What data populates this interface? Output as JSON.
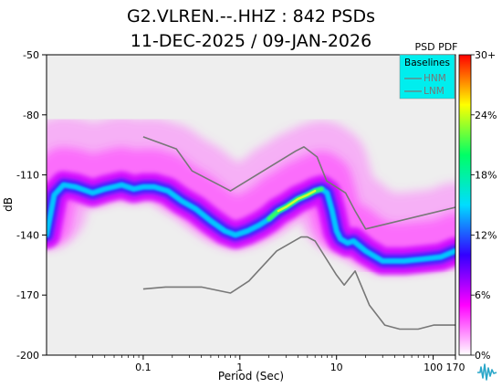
{
  "chart_data": {
    "type": "heatmap",
    "title": "G2.VLREN.--.HHZ : 842 PSDs",
    "subtitle": "11-DEC-2025 / 09-JAN-2026",
    "xlabel": "Period (Sec)",
    "ylabel": "dB",
    "x_scale": "log",
    "xlim": [
      0.01,
      170
    ],
    "ylim": [
      -200,
      -50
    ],
    "x_ticks": [
      {
        "value": 0.1,
        "label": "0.1"
      },
      {
        "value": 1,
        "label": "1"
      },
      {
        "value": 10,
        "label": "10"
      },
      {
        "value": 100,
        "label": "100"
      },
      {
        "value": 170,
        "label": "170"
      }
    ],
    "y_ticks": [
      {
        "value": -50,
        "label": "-50"
      },
      {
        "value": -80,
        "label": "-80"
      },
      {
        "value": -110,
        "label": "-110"
      },
      {
        "value": -140,
        "label": "-140"
      },
      {
        "value": -170,
        "label": "-170"
      },
      {
        "value": -200,
        "label": "-200"
      }
    ],
    "colorbar": {
      "title": "PSD PDF",
      "ticks": [
        "30+",
        "24%",
        "18%",
        "12%",
        "6%",
        "0%"
      ],
      "tick_values": [
        30,
        24,
        18,
        12,
        6,
        0
      ],
      "colors": [
        "#ffffff",
        "#ff00ff",
        "#3300ff",
        "#00ddff",
        "#00ff66",
        "#ffff00",
        "#ff0000"
      ]
    },
    "legend": {
      "title": "Baselines",
      "placement": "top-right",
      "entries": [
        {
          "name": "HNM",
          "color": "#777777"
        },
        {
          "name": "LNM",
          "color": "#777777"
        }
      ]
    },
    "series": [
      {
        "name": "HNM",
        "points": [
          [
            0.1,
            -91
          ],
          [
            0.22,
            -97
          ],
          [
            0.32,
            -108
          ],
          [
            0.8,
            -118
          ],
          [
            3.8,
            -98
          ],
          [
            4.6,
            -96
          ],
          [
            6.3,
            -101
          ],
          [
            7.9,
            -113
          ],
          [
            12.4,
            -119
          ],
          [
            15.6,
            -128
          ],
          [
            20,
            -137
          ],
          [
            176,
            -126
          ]
        ]
      },
      {
        "name": "LNM",
        "points": [
          [
            0.1,
            -167
          ],
          [
            0.17,
            -166
          ],
          [
            0.4,
            -166
          ],
          [
            0.8,
            -169
          ],
          [
            1.24,
            -163
          ],
          [
            2.4,
            -148
          ],
          [
            4.3,
            -141
          ],
          [
            5,
            -141
          ],
          [
            6,
            -143
          ],
          [
            10,
            -160
          ],
          [
            12,
            -165
          ],
          [
            15.6,
            -158
          ],
          [
            21.9,
            -175
          ],
          [
            31.6,
            -185
          ],
          [
            45,
            -187
          ],
          [
            70,
            -187
          ],
          [
            101,
            -185
          ],
          [
            176,
            -185
          ]
        ]
      },
      {
        "name": "mode",
        "points": [
          [
            0.01,
            -140
          ],
          [
            0.012,
            -120
          ],
          [
            0.015,
            -115
          ],
          [
            0.02,
            -116
          ],
          [
            0.03,
            -119
          ],
          [
            0.04,
            -117
          ],
          [
            0.06,
            -115
          ],
          [
            0.08,
            -117
          ],
          [
            0.1,
            -116
          ],
          [
            0.13,
            -116
          ],
          [
            0.18,
            -118
          ],
          [
            0.25,
            -123
          ],
          [
            0.35,
            -127
          ],
          [
            0.5,
            -133
          ],
          [
            0.7,
            -138
          ],
          [
            0.9,
            -140
          ],
          [
            1.2,
            -138
          ],
          [
            1.6,
            -135
          ],
          [
            2,
            -132
          ],
          [
            2.5,
            -128
          ],
          [
            3,
            -126
          ],
          [
            4,
            -122
          ],
          [
            5,
            -120
          ],
          [
            6,
            -118
          ],
          [
            7,
            -117
          ],
          [
            8,
            -119
          ],
          [
            9,
            -128
          ],
          [
            10,
            -138
          ],
          [
            11,
            -142
          ],
          [
            13,
            -144
          ],
          [
            15,
            -143
          ],
          [
            20,
            -148
          ],
          [
            30,
            -153
          ],
          [
            50,
            -153
          ],
          [
            80,
            -152
          ],
          [
            120,
            -151
          ],
          [
            170,
            -148
          ]
        ]
      }
    ]
  }
}
